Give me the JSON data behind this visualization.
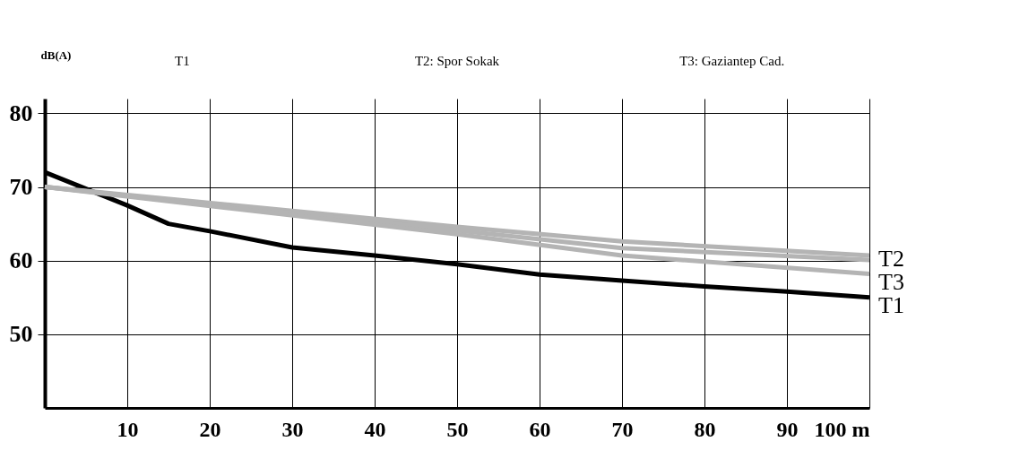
{
  "chart_data": {
    "type": "line",
    "ylabel": "dB(A)",
    "annotations": [
      "T1",
      "T2: Spor Sokak",
      "T3: Gaziantep Cad."
    ],
    "xlim": [
      0,
      100
    ],
    "ylim": [
      40,
      82
    ],
    "xticks": [
      10,
      20,
      30,
      40,
      50,
      60,
      70,
      80,
      90,
      {
        "value": 100,
        "label": "100 m"
      }
    ],
    "yticks": [
      50,
      60,
      70,
      80
    ],
    "grid": true,
    "legend": false,
    "marker": "none",
    "line_style": "solid",
    "series": [
      {
        "name": "T1",
        "color": "#000000",
        "x": [
          0,
          10,
          15,
          20,
          30,
          40,
          50,
          60,
          70,
          80,
          90,
          100
        ],
        "values": [
          72,
          67.5,
          65,
          64,
          61.8,
          60.7,
          59.5,
          58.1,
          57.3,
          56.5,
          55.8,
          55
        ]
      },
      {
        "name": "T2",
        "color": "#b4b4b4",
        "x": [
          0,
          50,
          70,
          100
        ],
        "values": [
          70,
          64.6,
          62.6,
          60.7
        ]
      },
      {
        "name": "T3",
        "color": "#b4b4b4",
        "x": [
          0,
          50,
          70,
          100
        ],
        "values": [
          70,
          64.1,
          61.7,
          60.1
        ]
      },
      {
        "color": "#b4b4b4",
        "x": [
          0,
          50,
          70,
          100
        ],
        "values": [
          70,
          63.6,
          60.7,
          58.2
        ]
      }
    ]
  }
}
